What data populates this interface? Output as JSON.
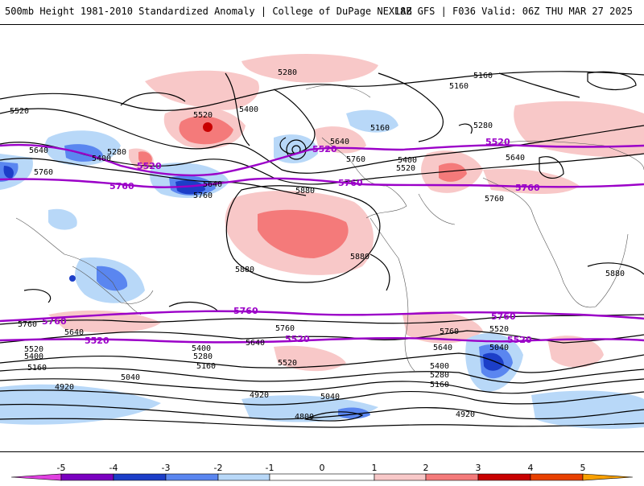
{
  "header": {
    "left_title": "500mb Height 1981-2010 Standardized Anomaly | College of DuPage NEXLAB",
    "right_title": "18Z GFS | F036 Valid: 06Z THU MAR 27 2025"
  },
  "colors": {
    "anom_neg5": "#e040e0",
    "anom_neg4": "#7a00c0",
    "anom_neg3": "#1c3ec8",
    "anom_neg2": "#5a86f0",
    "anom_neg1": "#b8d8f8",
    "anom_pos1": "#f8c8c8",
    "anom_pos2": "#f47a7a",
    "anom_pos3": "#c80000",
    "anom_pos4": "#e84000",
    "anom_pos5": "#f8a000",
    "contour": "#000000",
    "highlight_contour": "#9b00c8"
  },
  "colorbar": {
    "tick_labels": [
      "-5",
      "-4",
      "-3",
      "-2",
      "-1",
      "0",
      "1",
      "2",
      "3",
      "4",
      "5"
    ]
  },
  "contour_labels": [
    {
      "name": "north-5280-a",
      "text": "5280"
    },
    {
      "name": "north-5160-a",
      "text": "5160"
    },
    {
      "name": "north-5160-b",
      "text": "5160"
    },
    {
      "name": "pac-5520-a",
      "text": "5520"
    },
    {
      "name": "pac-5400-a",
      "text": "5400"
    },
    {
      "name": "atl-5160-a",
      "text": "5160"
    },
    {
      "name": "atl-5280-a",
      "text": "5280"
    },
    {
      "name": "w-5520",
      "text": "5520"
    },
    {
      "name": "w-5640",
      "text": "5640"
    },
    {
      "name": "w-5760",
      "text": "5760"
    },
    {
      "name": "jp-5280",
      "text": "5280"
    },
    {
      "name": "jp-5400",
      "text": "5400"
    },
    {
      "name": "pac-5640",
      "text": "5640"
    },
    {
      "name": "pac-5760",
      "text": "5760"
    },
    {
      "name": "na-5640",
      "text": "5640"
    },
    {
      "name": "na-5760",
      "text": "5760"
    },
    {
      "name": "na-5400",
      "text": "5400"
    },
    {
      "name": "na-5520",
      "text": "5520"
    },
    {
      "name": "eu-5640",
      "text": "5640"
    },
    {
      "name": "af-5760",
      "text": "5760"
    },
    {
      "name": "pac-5880",
      "text": "5880"
    },
    {
      "name": "sa-5880",
      "text": "5880"
    },
    {
      "name": "pac-5880-b",
      "text": "5880"
    },
    {
      "name": "io-5880",
      "text": "5880"
    },
    {
      "name": "s-5760-a",
      "text": "5760"
    },
    {
      "name": "s-5640-a",
      "text": "5640"
    },
    {
      "name": "s-5520-a",
      "text": "5520"
    },
    {
      "name": "s-5400-a",
      "text": "5400"
    },
    {
      "name": "s-5160-a",
      "text": "5160"
    },
    {
      "name": "s-5040-a",
      "text": "5040"
    },
    {
      "name": "s-4920-a",
      "text": "4920"
    },
    {
      "name": "s-5400-b",
      "text": "5400"
    },
    {
      "name": "s-5280-b",
      "text": "5280"
    },
    {
      "name": "s-5160-b",
      "text": "5160"
    },
    {
      "name": "s-5760-b",
      "text": "5760"
    },
    {
      "name": "s-5640-b",
      "text": "5640"
    },
    {
      "name": "s-5520-b",
      "text": "5520"
    },
    {
      "name": "s-4920-b",
      "text": "4920"
    },
    {
      "name": "s-5040-b",
      "text": "5040"
    },
    {
      "name": "s-4800",
      "text": "4800"
    },
    {
      "name": "sa-5760",
      "text": "5760"
    },
    {
      "name": "sa-5640",
      "text": "5640"
    },
    {
      "name": "sa-5400",
      "text": "5400"
    },
    {
      "name": "sa-5280",
      "text": "5280"
    },
    {
      "name": "sa-5160",
      "text": "5160"
    },
    {
      "name": "so-4920",
      "text": "4920"
    },
    {
      "name": "so-5520",
      "text": "5520"
    },
    {
      "name": "so-5040",
      "text": "5040"
    }
  ],
  "highlight_labels": [
    {
      "name": "hl-5520-npac",
      "text": "5520"
    },
    {
      "name": "hl-5760-npac",
      "text": "5760"
    },
    {
      "name": "hl-5520-na",
      "text": "5520"
    },
    {
      "name": "hl-5760-na",
      "text": "5760"
    },
    {
      "name": "hl-5520-atl",
      "text": "5520"
    },
    {
      "name": "hl-5760-atl",
      "text": "5760"
    },
    {
      "name": "hl-5760-s-w",
      "text": "5760"
    },
    {
      "name": "hl-5520-s-w",
      "text": "5520"
    },
    {
      "name": "hl-5760-s-c",
      "text": "5760"
    },
    {
      "name": "hl-5520-s-c",
      "text": "5520"
    },
    {
      "name": "hl-5760-s-e",
      "text": "5760"
    },
    {
      "name": "hl-5520-s-e",
      "text": "5520"
    }
  ]
}
